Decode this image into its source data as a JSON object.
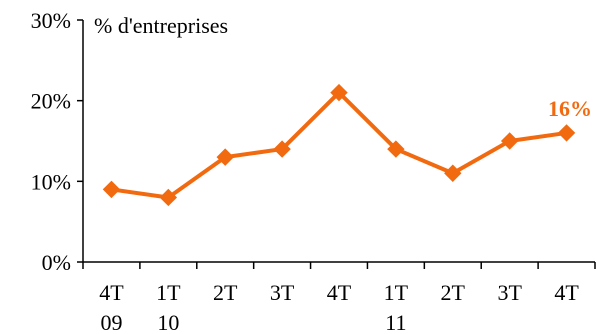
{
  "chart_data": {
    "type": "line",
    "categories": [
      [
        "4T",
        "09"
      ],
      [
        "1T",
        "10"
      ],
      [
        "2T",
        ""
      ],
      [
        "3T",
        ""
      ],
      [
        "4T",
        ""
      ],
      [
        "1T",
        "11"
      ],
      [
        "2T",
        ""
      ],
      [
        "3T",
        ""
      ],
      [
        "4T",
        ""
      ]
    ],
    "series": [
      {
        "values": [
          9,
          8,
          13,
          14,
          21,
          14,
          11,
          15,
          16
        ],
        "color": "#F26A10",
        "marker": "diamond"
      }
    ],
    "ylim": [
      0,
      30
    ],
    "yticks": [
      {
        "value": 0,
        "label": "0%"
      },
      {
        "value": 10,
        "label": "10%"
      },
      {
        "value": 20,
        "label": "20%"
      },
      {
        "value": 30,
        "label": "30%"
      }
    ],
    "ylabel": "% d'entreprises",
    "end_label": "16%",
    "grid": false,
    "legend": "none"
  }
}
